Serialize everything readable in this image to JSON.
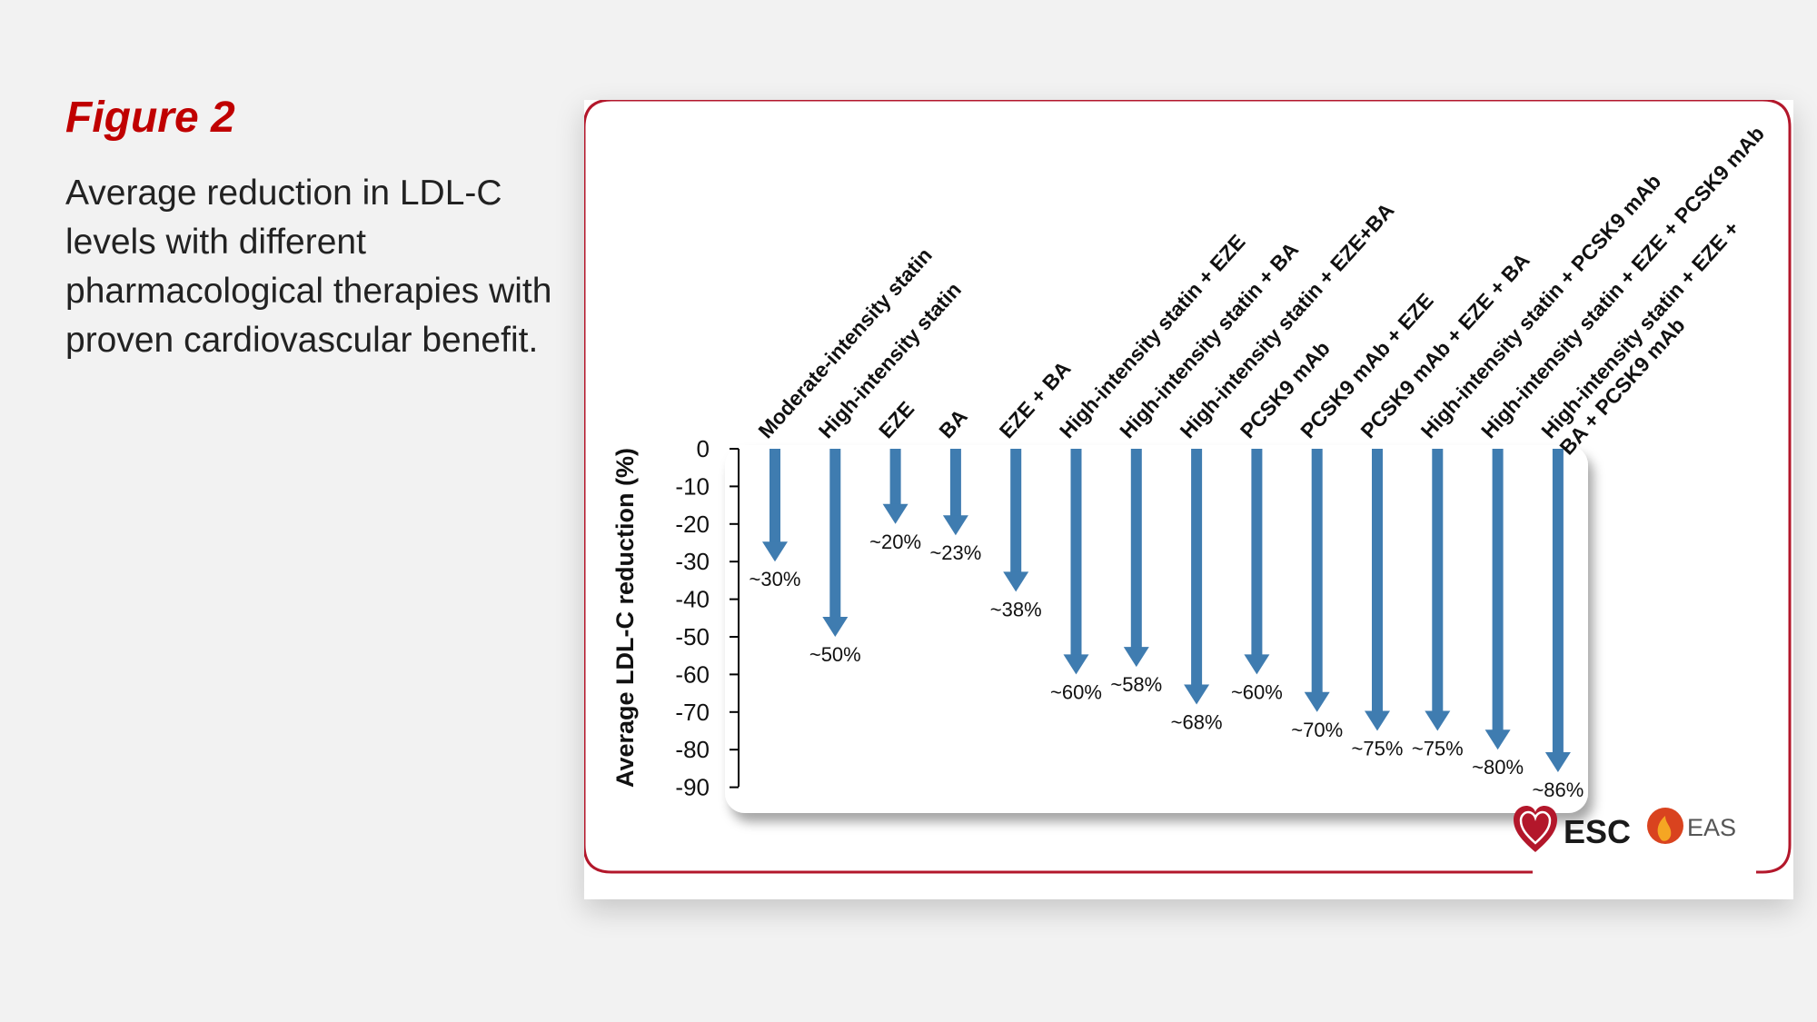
{
  "figure": {
    "title": "Figure 2",
    "caption": "Average reduction in LDL-C levels with different pharmacological therapies with proven cardiovascular benefit."
  },
  "logos": {
    "esc": "ESC",
    "eas": "EAS"
  },
  "colors": {
    "title_red": "#c00000",
    "frame_red": "#b3172b",
    "arrow_blue": "#3f7cb0"
  },
  "chart_data": {
    "type": "bar",
    "orientation": "downward-arrows",
    "ylabel": "Average LDL-C reduction (%)",
    "ylim": [
      -90,
      0
    ],
    "yticks": [
      0,
      -10,
      -20,
      -30,
      -40,
      -50,
      -60,
      -70,
      -80,
      -90
    ],
    "categories": [
      [
        "Moderate-intensity statin"
      ],
      [
        "High-intensity statin"
      ],
      [
        "EZE"
      ],
      [
        "BA"
      ],
      [
        "EZE + BA"
      ],
      [
        "High-intensity statin + EZE"
      ],
      [
        "High-intensity statin + BA"
      ],
      [
        "High-intensity statin + EZE+BA"
      ],
      [
        "PCSK9 mAb"
      ],
      [
        "PCSK9 mAb + EZE"
      ],
      [
        "PCSK9 mAb + EZE + BA"
      ],
      [
        "High-intensity statin + PCSK9 mAb"
      ],
      [
        "High-intensity statin + EZE + PCSK9 mAb"
      ],
      [
        "High-intensity statin + EZE +",
        "BA + PCSK9 mAb"
      ]
    ],
    "values": [
      -30,
      -50,
      -20,
      -23,
      -38,
      -60,
      -58,
      -68,
      -60,
      -70,
      -75,
      -75,
      -80,
      -86
    ],
    "value_labels": [
      "~30%",
      "~50%",
      "~20%",
      "~23%",
      "~38%",
      "~60%",
      "~58%",
      "~68%",
      "~60%",
      "~70%",
      "~75%",
      "~75%",
      "~80%",
      "~86%"
    ]
  }
}
